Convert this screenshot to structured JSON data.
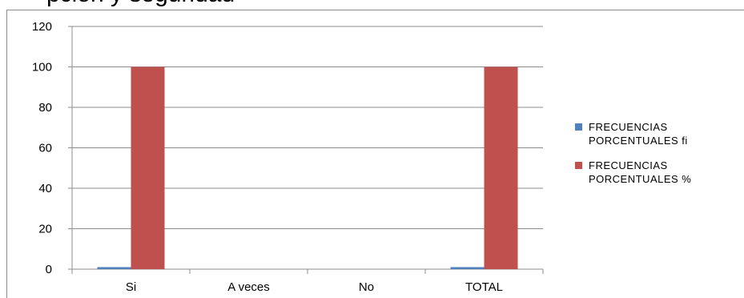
{
  "chart_data": {
    "type": "bar",
    "title": "pción y seguridad",
    "categories": [
      "Si",
      "A veces",
      "No",
      "TOTAL"
    ],
    "ylim": [
      0,
      120
    ],
    "yticks": [
      0,
      20,
      40,
      60,
      80,
      100,
      120
    ],
    "grid": true,
    "legend_position": "right",
    "series": [
      {
        "name": "FRECUENCIAS PORCENTUALES fi",
        "color": "#4f81bd",
        "values": [
          1,
          0,
          0,
          1
        ]
      },
      {
        "name": "FRECUENCIAS PORCENTUALES %",
        "color": "#c0504d",
        "values": [
          100,
          0,
          0,
          100
        ]
      }
    ]
  }
}
